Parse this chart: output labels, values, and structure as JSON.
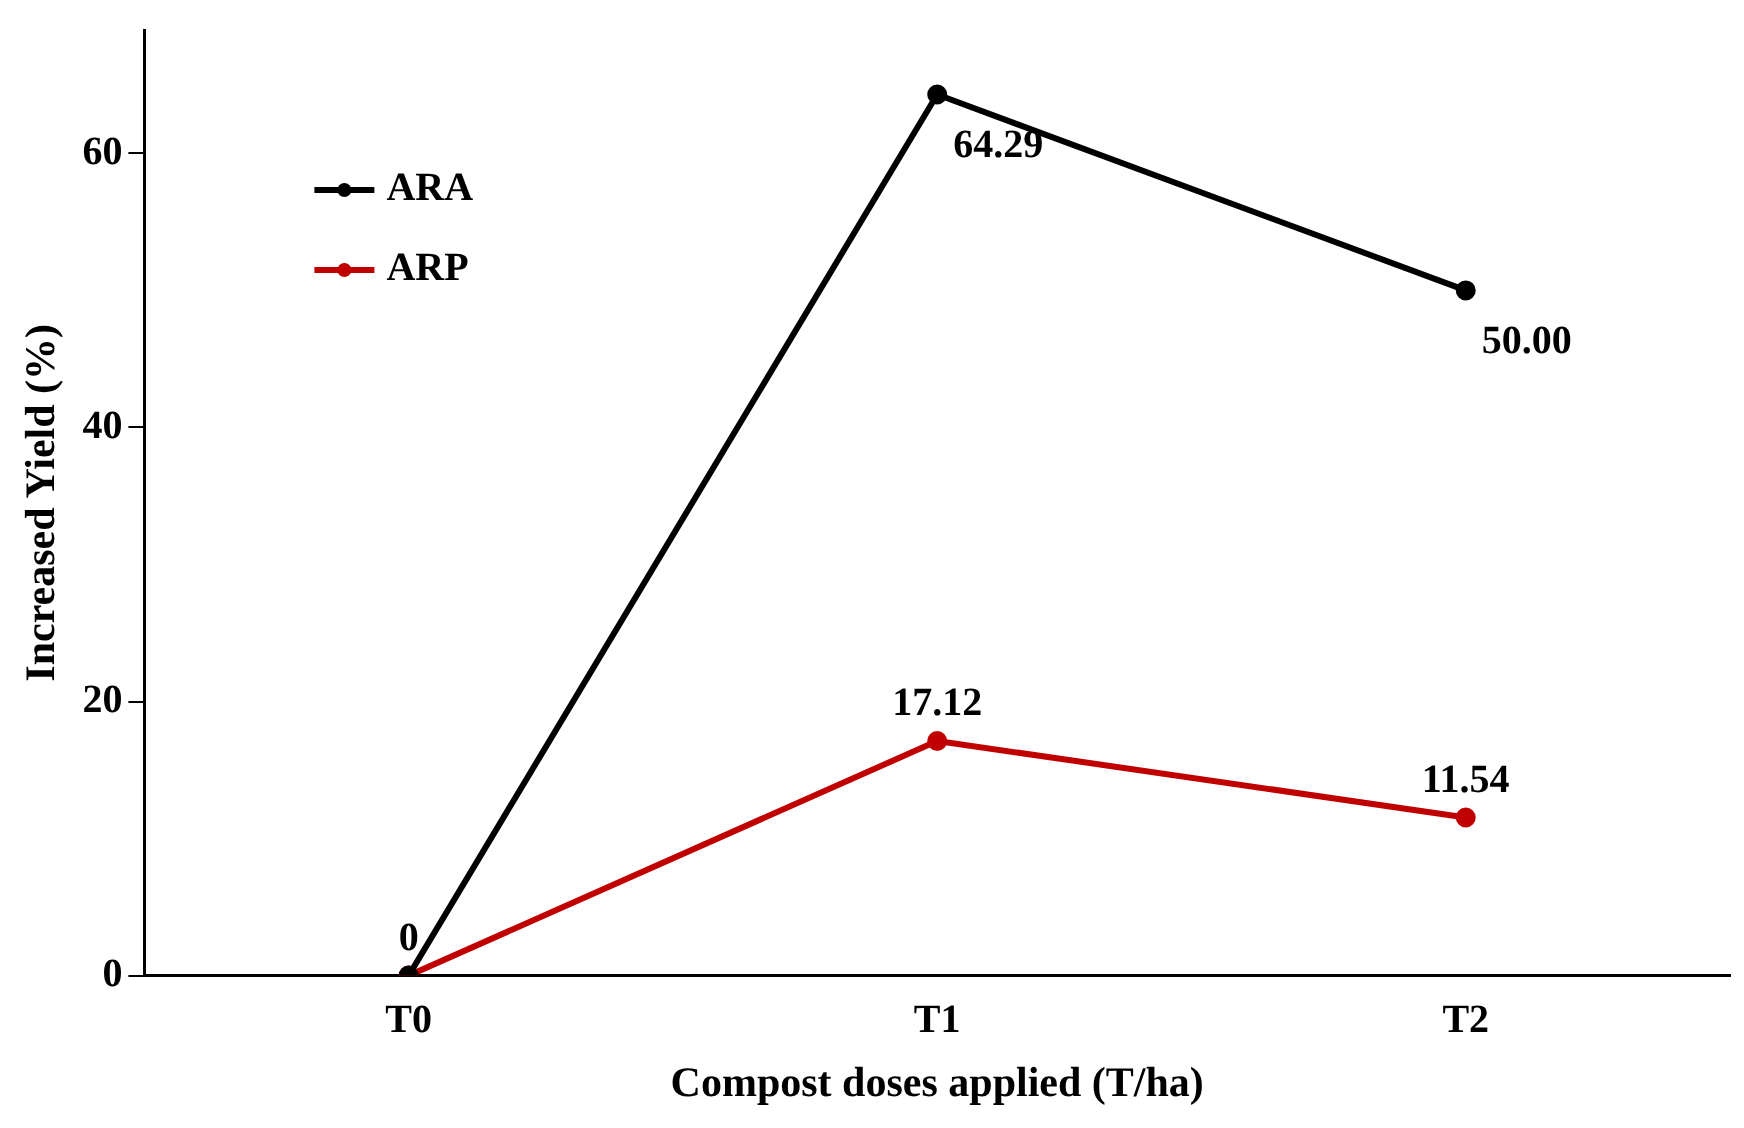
{
  "chart_data": {
    "type": "line",
    "xlabel": "Compost doses applied (T/ha)",
    "ylabel": "Increased Yield (%)",
    "categories": [
      "T0",
      "T1",
      "T2"
    ],
    "series": [
      {
        "name": "ARA",
        "color": "#000000",
        "values": [
          0,
          64.29,
          50.0
        ],
        "value_labels": [
          null,
          "64.29",
          "50.00"
        ]
      },
      {
        "name": "ARP",
        "color": "#c00000",
        "values": [
          0,
          17.12,
          11.54
        ],
        "value_labels": [
          "0",
          "17.12",
          "11.54"
        ]
      }
    ],
    "ylim": [
      0,
      69
    ],
    "yticks": [
      0,
      20,
      40,
      60
    ],
    "grid": false,
    "legend": "top left",
    "marker": "circle",
    "line_style": "solid"
  }
}
